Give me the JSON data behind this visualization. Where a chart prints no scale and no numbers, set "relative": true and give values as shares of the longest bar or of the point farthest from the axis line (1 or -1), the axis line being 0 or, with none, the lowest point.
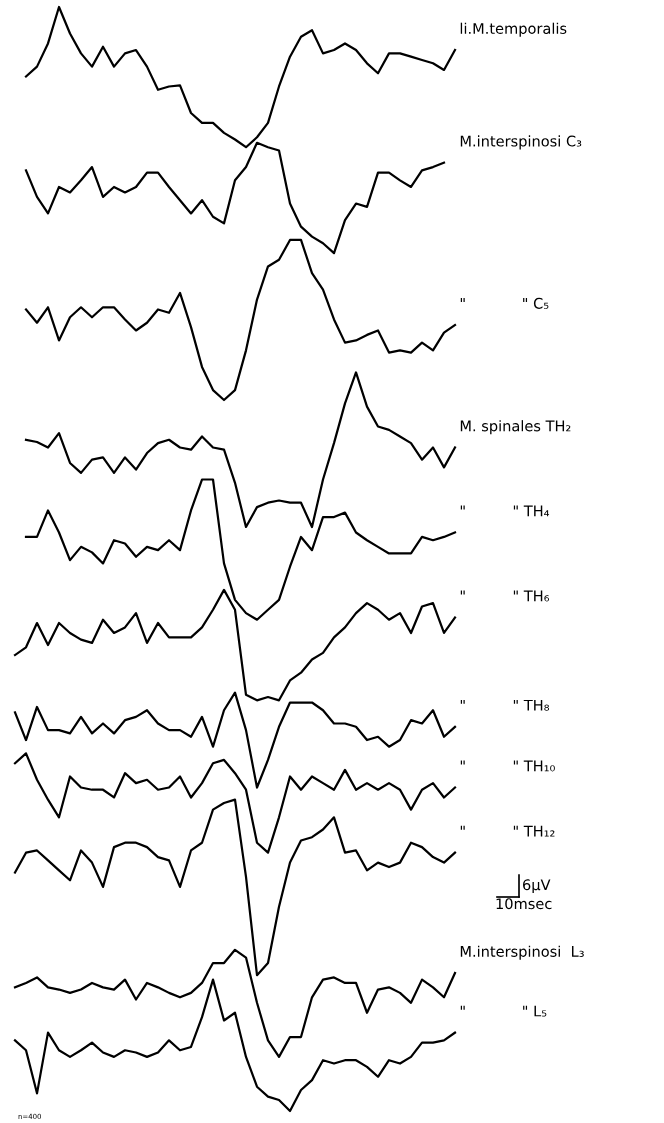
{
  "chart_data": {
    "type": "line",
    "relative": true,
    "tick_labels": false,
    "legend": false,
    "marker": "none",
    "line_style": "solid",
    "categories": [
      null,
      null,
      null,
      null,
      null,
      null,
      null,
      null,
      null,
      null,
      null,
      null,
      null,
      null,
      null,
      null,
      null,
      null,
      null,
      null,
      null,
      null,
      null,
      null,
      null,
      null,
      null,
      null,
      null,
      null,
      null,
      null,
      null,
      null,
      null,
      null,
      null,
      null,
      null,
      null,
      null
    ],
    "series": [
      {
        "name": "li.M.temporalis",
        "color": "#000000",
        "values": [
          null,
          0.937,
          0.946,
          0.967,
          1.0,
          0.976,
          0.958,
          0.946,
          0.964,
          0.946,
          0.958,
          0.961,
          0.946,
          0.925,
          0.928,
          0.929,
          0.904,
          0.895,
          0.895,
          0.886,
          0.88,
          0.873,
          0.882,
          0.895,
          0.928,
          0.955,
          0.973,
          0.979,
          0.958,
          0.961,
          0.967,
          0.961,
          0.949,
          0.94,
          0.958,
          0.958,
          0.955,
          0.952,
          0.949,
          0.943,
          0.961
        ]
      },
      {
        "name": "M.interspinosi C₃",
        "color": "#000000",
        "values": [
          null,
          0.852,
          0.828,
          0.813,
          0.837,
          0.832,
          0.843,
          0.855,
          0.828,
          0.837,
          0.832,
          0.837,
          0.85,
          0.85,
          0.837,
          0.825,
          0.813,
          0.825,
          0.81,
          0.804,
          0.843,
          0.855,
          0.877,
          0.873,
          0.87,
          0.822,
          0.801,
          0.792,
          0.786,
          0.777,
          0.807,
          0.822,
          0.819,
          0.85,
          0.85,
          0.843,
          0.837,
          0.852,
          0.855,
          0.859,
          null
        ]
      },
      {
        "name": "\"            \" C₅",
        "color": "#000000",
        "values": [
          null,
          0.726,
          0.714,
          0.728,
          0.698,
          0.719,
          0.728,
          0.719,
          0.728,
          0.728,
          0.717,
          0.707,
          0.714,
          0.726,
          0.723,
          0.741,
          0.71,
          0.674,
          0.653,
          0.644,
          0.653,
          0.689,
          0.735,
          0.765,
          0.771,
          0.789,
          0.789,
          0.759,
          0.744,
          0.717,
          0.696,
          0.698,
          0.703,
          0.707,
          0.687,
          0.689,
          0.687,
          0.696,
          0.689,
          0.705,
          0.712
        ]
      },
      {
        "name": "M. spinales TH₂",
        "color": "#000000",
        "values": [
          null,
          0.608,
          0.606,
          0.601,
          0.614,
          0.587,
          0.578,
          0.59,
          0.592,
          0.578,
          0.592,
          0.581,
          0.596,
          0.605,
          0.608,
          0.601,
          0.599,
          0.611,
          0.601,
          0.599,
          0.569,
          0.529,
          0.547,
          0.551,
          0.553,
          0.551,
          0.551,
          0.529,
          0.572,
          0.605,
          0.641,
          0.669,
          0.638,
          0.62,
          0.617,
          0.611,
          0.605,
          0.59,
          0.601,
          0.583,
          0.601
        ]
      },
      {
        "name": "\"          \" TH₄",
        "color": "#000000",
        "values": [
          null,
          0.52,
          0.52,
          0.544,
          0.524,
          0.499,
          0.511,
          0.506,
          0.496,
          0.517,
          0.514,
          0.502,
          0.511,
          0.508,
          0.517,
          0.508,
          0.544,
          0.572,
          0.572,
          0.496,
          0.463,
          0.451,
          0.445,
          0.454,
          0.463,
          0.493,
          0.52,
          0.508,
          0.538,
          0.538,
          0.542,
          0.524,
          0.517,
          0.511,
          0.505,
          0.505,
          0.505,
          0.52,
          0.517,
          0.52,
          0.524
        ]
      },
      {
        "name": "\"          \" TH₆",
        "color": "#000000",
        "values": [
          0.413,
          0.42,
          0.442,
          0.422,
          0.442,
          0.433,
          0.427,
          0.424,
          0.445,
          0.433,
          0.438,
          0.451,
          0.424,
          0.442,
          0.429,
          0.429,
          0.429,
          0.438,
          0.454,
          0.472,
          0.454,
          0.377,
          0.372,
          0.375,
          0.372,
          0.39,
          0.397,
          0.409,
          0.415,
          0.429,
          0.438,
          0.451,
          0.46,
          0.454,
          0.445,
          0.451,
          0.433,
          0.457,
          0.46,
          0.433,
          0.447
        ]
      },
      {
        "name": "\"          \" TH₈",
        "color": "#000000",
        "values": [
          0.361,
          0.336,
          0.366,
          0.345,
          0.345,
          0.342,
          0.357,
          0.342,
          0.351,
          0.342,
          0.354,
          0.357,
          0.363,
          0.351,
          0.345,
          0.345,
          0.339,
          0.357,
          0.33,
          0.363,
          0.379,
          0.345,
          0.293,
          0.318,
          0.348,
          0.37,
          0.37,
          0.37,
          0.363,
          0.351,
          0.351,
          0.348,
          0.336,
          0.339,
          0.33,
          0.336,
          0.354,
          0.351,
          0.363,
          0.339,
          0.348
        ]
      },
      {
        "name": "\"          \" TH₁₀",
        "color": "#000000",
        "values": [
          0.315,
          0.324,
          0.3,
          0.282,
          0.266,
          0.303,
          0.293,
          0.291,
          0.291,
          0.284,
          0.306,
          0.297,
          0.3,
          0.291,
          0.293,
          0.303,
          0.284,
          0.297,
          0.315,
          0.318,
          0.306,
          0.291,
          0.243,
          0.234,
          0.266,
          0.303,
          0.291,
          0.303,
          0.297,
          0.291,
          0.309,
          0.291,
          0.297,
          0.291,
          0.297,
          0.291,
          0.273,
          0.291,
          0.297,
          0.284,
          0.293
        ]
      },
      {
        "name": "\"          \" TH₁₂",
        "color": "#000000",
        "values": [
          0.216,
          0.234,
          0.236,
          0.227,
          0.218,
          0.209,
          0.236,
          0.225,
          0.203,
          0.239,
          0.243,
          0.243,
          0.239,
          0.23,
          0.227,
          0.203,
          0.236,
          0.243,
          0.273,
          0.279,
          0.282,
          0.212,
          0.123,
          0.134,
          0.185,
          0.225,
          0.245,
          0.248,
          0.255,
          0.266,
          0.234,
          0.236,
          0.218,
          0.225,
          0.221,
          0.225,
          0.243,
          0.239,
          0.23,
          0.225,
          0.234
        ]
      },
      {
        "name": "M.interspinosi  L₃",
        "color": "#000000",
        "values": [
          0.112,
          0.116,
          0.121,
          0.112,
          0.11,
          0.107,
          0.11,
          0.116,
          0.112,
          0.11,
          0.119,
          0.101,
          0.116,
          0.112,
          0.107,
          0.103,
          0.107,
          0.116,
          0.134,
          0.134,
          0.146,
          0.139,
          0.098,
          0.064,
          0.049,
          0.067,
          0.067,
          0.103,
          0.119,
          0.121,
          0.116,
          0.116,
          0.089,
          0.11,
          0.112,
          0.107,
          0.098,
          0.119,
          0.112,
          0.103,
          0.125
        ]
      },
      {
        "name": "\"            \" L₅",
        "color": "#000000",
        "values": [
          0.064,
          0.055,
          0.016,
          0.071,
          0.055,
          0.049,
          0.055,
          0.062,
          0.053,
          0.049,
          0.055,
          0.053,
          0.049,
          0.053,
          0.064,
          0.055,
          0.058,
          0.085,
          0.119,
          0.082,
          0.089,
          0.049,
          0.022,
          0.013,
          0.01,
          0,
          0.019,
          0.028,
          0.046,
          0.043,
          0.046,
          0.046,
          0.04,
          0.031,
          0.046,
          0.043,
          0.049,
          0.062,
          0.062,
          0.064,
          0.071
        ]
      }
    ],
    "annotations": [
      "6µV",
      "10msec",
      "n=400"
    ]
  }
}
